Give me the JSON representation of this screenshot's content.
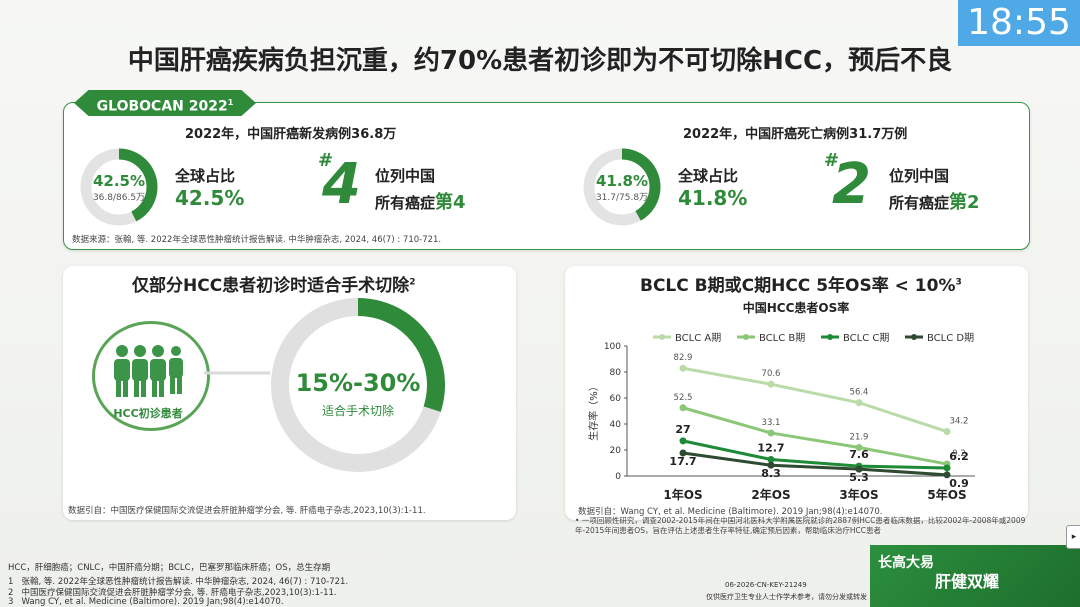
{
  "clock": "18:55",
  "title": "中国肝癌疾病负担沉重，约70%患者初诊即为不可切除HCC，预后不良",
  "globocan": {
    "badge": "GLOBOCAN 2022",
    "badge_sup": "1",
    "left": {
      "subtitle": "2022年，中国肝癌新发病例36.8万",
      "ring_pct": "42.5%",
      "ring_frac": "36.8/86.5万",
      "ring_value": 0.425,
      "label": "全球占比",
      "pct": "42.5%",
      "hash": "#",
      "rank": "4",
      "rank_l1": "位列中国",
      "rank_l2a": "所有癌症",
      "rank_l2b": "第4"
    },
    "right": {
      "subtitle": "2022年，中国肝癌死亡病例31.7万例",
      "ring_pct": "41.8%",
      "ring_frac": "31.7/75.8万",
      "ring_value": 0.418,
      "label": "全球占比",
      "pct": "41.8%",
      "hash": "#",
      "rank": "2",
      "rank_l1": "位列中国",
      "rank_l2a": "所有癌症",
      "rank_l2b": "第2"
    },
    "source": "数据来源：张翰, 等. 2022年全球恶性肿瘤统计报告解读. 中华肿瘤杂志, 2024, 46(7) : 710-721."
  },
  "surgery": {
    "title": "仅部分HCC患者初诊时适合手术切除",
    "title_sup": "2",
    "people_label": "HCC初诊患者",
    "range": "15%-30%",
    "range_label": "适合手术切除",
    "ring_value": 0.3,
    "source": "数据引自：中国医疗保健国际交流促进会肝脏肿瘤学分会, 等. 肝癌电子杂志,2023,10(3):1-11."
  },
  "os": {
    "title": "BCLC B期或C期HCC 5年OS率 < 10%",
    "title_sup": "3",
    "source": "数据引自：Wang CY, et al. Medicine (Baltimore). 2019 Jan;98(4):e14070.",
    "note_bullet": "•",
    "note": "一项回顾性研究，调查2002-2015年间在中国河北医科大学附属医院就诊的2887例HCC患者临床数据，比较2002年-2008年或2009年-2015年间患者OS，旨在评估上述患者生存率特征,确定预后因素，帮助临床治疗HCC患者"
  },
  "chart_data": {
    "type": "line",
    "title": "中国HCC患者OS率",
    "ylabel": "生存率（%）",
    "xlabel": "",
    "categories": [
      "1年OS",
      "2年OS",
      "3年OS",
      "5年OS"
    ],
    "ylim": [
      0,
      100
    ],
    "yticks": [
      0,
      20,
      40,
      60,
      80,
      100
    ],
    "legend_position": "top",
    "series": [
      {
        "name": "BCLC A期",
        "color": "#b9dba8",
        "values": [
          82.9,
          70.6,
          56.4,
          34.2
        ]
      },
      {
        "name": "BCLC B期",
        "color": "#8cc778",
        "values": [
          52.5,
          33.1,
          21.9,
          9.2
        ]
      },
      {
        "name": "BCLC C期",
        "color": "#1f8a36",
        "values": [
          27,
          12.7,
          7.6,
          6.2
        ]
      },
      {
        "name": "BCLC D期",
        "color": "#2e4a32",
        "values": [
          17.7,
          8.3,
          5.3,
          0.9
        ]
      }
    ],
    "labels": [
      [
        "82.9",
        "70.6",
        "56.4",
        "34.2"
      ],
      [
        "52.5",
        "33.1",
        "21.9",
        "9.2"
      ],
      [
        "27",
        "12.7",
        "7.6",
        "6.2"
      ],
      [
        "17.7",
        "8.3",
        "5.3",
        "0.9"
      ]
    ]
  },
  "footnotes": {
    "abbr": "HCC，肝细胞癌；CNLC，中国肝癌分期；BCLC，巴塞罗那临床肝癌；OS，总生存期",
    "ref1_num": "1",
    "ref1": "张翰, 等. 2022年全球恶性肿瘤统计报告解读. 中华肿瘤杂志, 2024, 46(7) : 710-721.",
    "ref2_num": "2",
    "ref2": "中国医疗保健国际交流促进会肝脏肿瘤学分会, 等. 肝癌电子杂志,2023,10(3):1-11.",
    "ref3_num": "3",
    "ref3": "Wang CY, et al. Medicine (Baltimore). 2019 Jan;98(4):e14070."
  },
  "brand": {
    "line1": "长高大易",
    "line2": "肝健双耀",
    "code": "06-2026-CN-KEY-21249",
    "notice": "仅供医疗卫生专业人士作学术参考，请勿分发或转发"
  },
  "icons": {
    "people": "people-group-icon",
    "scroll": "scroll-arrow-icon"
  }
}
